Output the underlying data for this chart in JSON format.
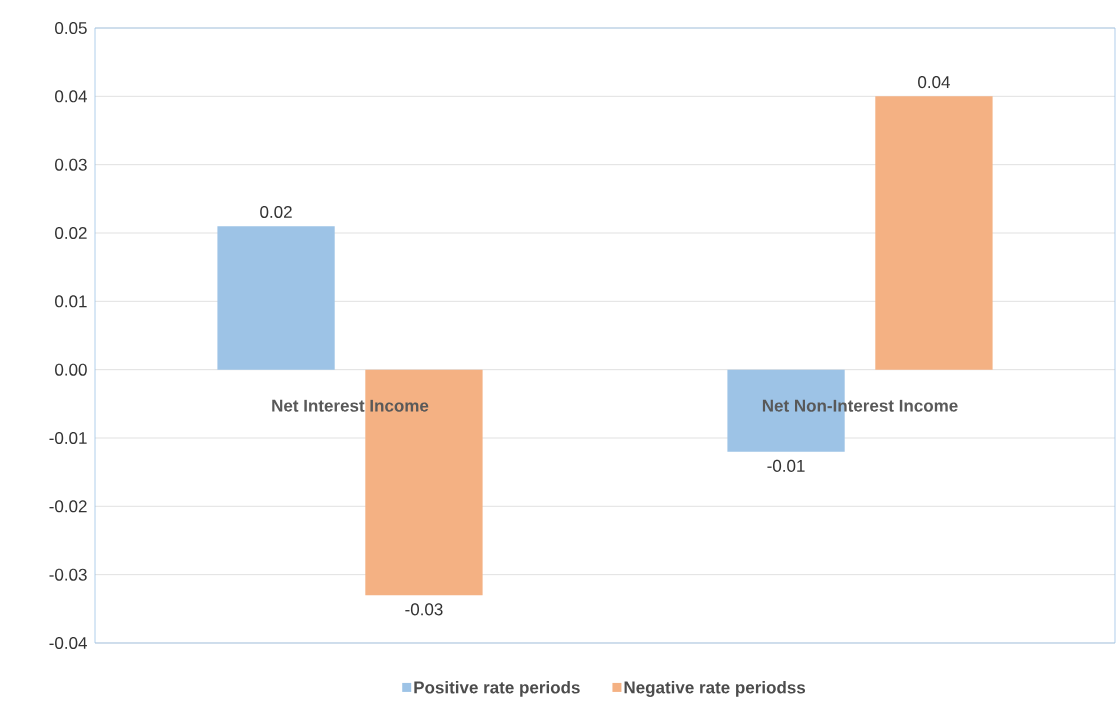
{
  "chart_data": {
    "type": "bar",
    "categories": [
      "Net Interest Income",
      "Net Non-Interest Income"
    ],
    "series": [
      {
        "name": "Positive rate periods",
        "color": "#9dc3e6",
        "values": [
          0.021,
          -0.012
        ],
        "value_labels": [
          "0.02",
          "-0.01"
        ]
      },
      {
        "name": "Negative rate periodss",
        "color": "#f4b183",
        "values": [
          -0.033,
          0.04
        ],
        "value_labels": [
          "-0.03",
          "0.04"
        ]
      }
    ],
    "ylim": [
      -0.04,
      0.05
    ],
    "yticks": [
      -0.04,
      -0.03,
      -0.02,
      -0.01,
      {
        "value": 0,
        "label": "0.00"
      },
      0.01,
      0.02,
      0.03,
      0.04,
      0.05
    ],
    "grid": "y",
    "legend": "bottom"
  }
}
